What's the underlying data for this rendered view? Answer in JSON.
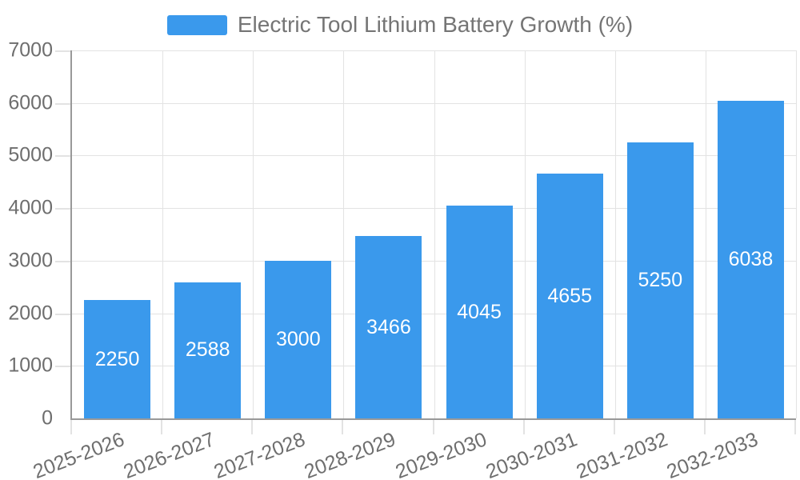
{
  "legend": {
    "label": "Electric Tool Lithium Battery Growth (%)"
  },
  "chart_data": {
    "type": "bar",
    "title": "Electric Tool Lithium Battery Growth (%)",
    "series_name": "Electric Tool Lithium Battery Growth (%)",
    "categories": [
      "2025-2026",
      "2026-2027",
      "2027-2028",
      "2028-2029",
      "2029-2030",
      "2030-2031",
      "2031-2032",
      "2032-2033"
    ],
    "values": [
      2250,
      2588,
      3000,
      3466,
      4045,
      4655,
      5250,
      6038
    ],
    "xlabel": "",
    "ylabel": "",
    "ylim": [
      0,
      7000
    ],
    "yticks": [
      0,
      1000,
      2000,
      3000,
      4000,
      5000,
      6000,
      7000
    ],
    "grid": true,
    "legend_position": "top-center",
    "bar_labels_position": "inside-middle",
    "x_label_rotation_deg": -21
  },
  "colors": {
    "bar": "#3A99EC",
    "bar_label_text": "#FFFFFF",
    "legend_text": "#757575",
    "axis_tick_text": "#6E6E6E",
    "grid_line": "#E3E3E3",
    "axis_line": "#999999",
    "background": "#FFFFFF"
  }
}
